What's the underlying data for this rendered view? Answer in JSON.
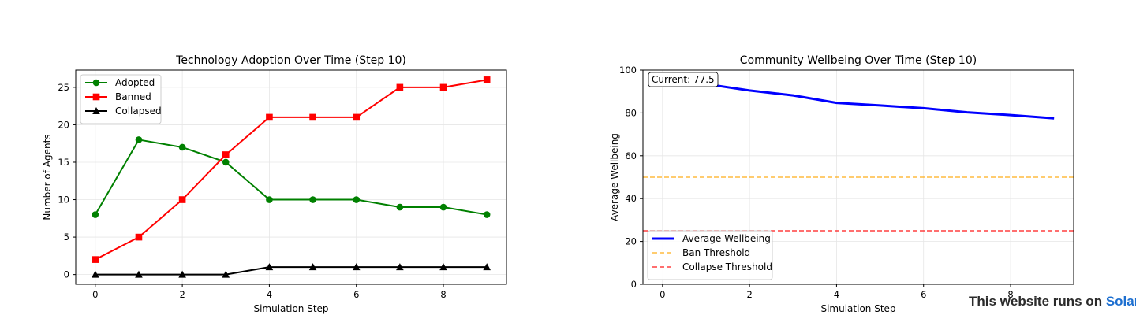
{
  "chart_data": [
    {
      "type": "line",
      "title": "Technology Adoption Over Time (Step 10)",
      "xlabel": "Simulation Step",
      "ylabel": "Number of Agents",
      "xlim": [
        -0.45,
        9.45
      ],
      "ylim": [
        -1.3,
        27.3
      ],
      "xticks": [
        0,
        2,
        4,
        6,
        8
      ],
      "yticks": [
        0,
        5,
        10,
        15,
        20,
        25
      ],
      "grid": true,
      "legend_position": "upper-left",
      "x": [
        0,
        1,
        2,
        3,
        4,
        5,
        6,
        7,
        8,
        9
      ],
      "series": [
        {
          "name": "Adopted",
          "color": "#008000",
          "marker": "circle",
          "values": [
            8,
            18,
            17,
            15,
            10,
            10,
            10,
            9,
            9,
            8
          ]
        },
        {
          "name": "Banned",
          "color": "#ff0000",
          "marker": "square",
          "values": [
            2,
            5,
            10,
            16,
            21,
            21,
            21,
            25,
            25,
            26
          ]
        },
        {
          "name": "Collapsed",
          "color": "#000000",
          "marker": "triangle",
          "values": [
            0,
            0,
            0,
            0,
            1,
            1,
            1,
            1,
            1,
            1
          ]
        }
      ]
    },
    {
      "type": "line",
      "title": "Community Wellbeing Over Time (Step 10)",
      "xlabel": "Simulation Step",
      "ylabel": "Average Wellbeing",
      "xlim": [
        -0.45,
        9.45
      ],
      "ylim": [
        0,
        100
      ],
      "xticks": [
        0,
        2,
        4,
        6,
        8
      ],
      "yticks": [
        0,
        20,
        40,
        60,
        80,
        100
      ],
      "grid": true,
      "legend_position": "lower-left",
      "annotation": "Current: 77.5",
      "x": [
        0,
        1,
        2,
        3,
        4,
        5,
        6,
        7,
        8,
        9
      ],
      "series": [
        {
          "name": "Average Wellbeing",
          "color": "#0000ff",
          "style": "solid-thick",
          "values": [
            96.5,
            93.5,
            90.5,
            88.2,
            84.7,
            83.5,
            82.2,
            80.3,
            79,
            77.5
          ]
        }
      ],
      "thresholds": [
        {
          "name": "Ban Threshold",
          "value": 50,
          "color": "#ffa500"
        },
        {
          "name": "Collapse Threshold",
          "value": 25,
          "color": "#ff0000"
        }
      ]
    }
  ],
  "footer": {
    "prefix": "This website runs on ",
    "brand": "Solar"
  }
}
